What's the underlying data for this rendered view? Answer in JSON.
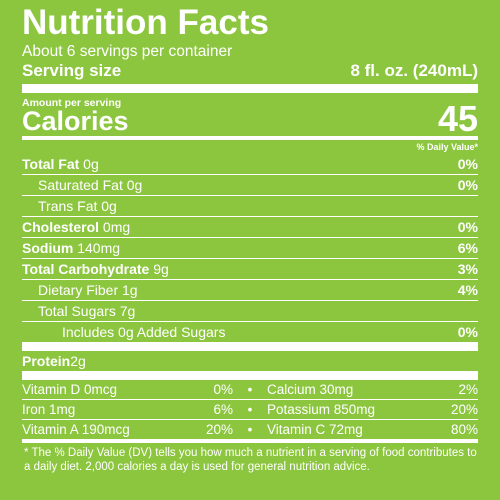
{
  "title": "Nutrition Facts",
  "servings_per_container": "About 6 servings per container",
  "serving_size": {
    "label": "Serving size",
    "value": "8 fl. oz. (240mL)"
  },
  "amount_per_serving": "Amount per serving",
  "calories": {
    "label": "Calories",
    "value": "45"
  },
  "dv_header": "% Daily Value*",
  "nutrients": [
    {
      "label": "Total Fat",
      "amount": " 0g",
      "dv": "0%"
    },
    {
      "label": "Saturated Fat 0g",
      "amount": "",
      "dv": "0%"
    },
    {
      "label": "Trans Fat 0g",
      "amount": "",
      "dv": ""
    },
    {
      "label": "Cholesterol",
      "amount": " 0mg",
      "dv": "0%"
    },
    {
      "label": "Sodium",
      "amount": " 140mg",
      "dv": "6%"
    },
    {
      "label": "Total Carbohydrate",
      "amount": " 9g",
      "dv": "3%"
    },
    {
      "label": "Dietary Fiber 1g",
      "amount": "",
      "dv": "4%"
    },
    {
      "label": "Total Sugars 7g",
      "amount": "",
      "dv": ""
    },
    {
      "label": "Includes 0g Added Sugars",
      "amount": "",
      "dv": "0%"
    }
  ],
  "protein": {
    "label": "Protein",
    "amount": " 2g"
  },
  "vitamins": [
    {
      "left_name": "Vitamin D 0mcg",
      "left_dv": "0%",
      "sep": "•",
      "right_name": "Calcium 30mg",
      "right_dv": "2%"
    },
    {
      "left_name": "Iron 1mg",
      "left_dv": "6%",
      "sep": "•",
      "right_name": "Potassium 850mg",
      "right_dv": "20%"
    },
    {
      "left_name": "Vitamin A 190mcg",
      "left_dv": "20%",
      "sep": "•",
      "right_name": "Vitamin C 72mg",
      "right_dv": "80%"
    }
  ],
  "footnote": "* The % Daily Value (DV) tells you how much a nutrient in a serving of food contributes to a daily diet. 2,000 calories a day is used for general nutrition advice.",
  "colors": {
    "background": "#8cc63f",
    "text": "#ffffff"
  }
}
